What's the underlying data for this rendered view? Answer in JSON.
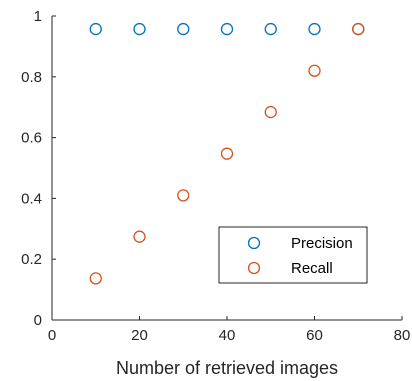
{
  "chart_data": {
    "type": "scatter",
    "xlabel": "Number of retrieved images",
    "ylabel": "",
    "xlim": [
      0,
      80
    ],
    "ylim": [
      0,
      1
    ],
    "xticks": [
      "0",
      "20",
      "40",
      "60",
      "80"
    ],
    "yticks": [
      "0",
      "0.2",
      "0.4",
      "0.6",
      "0.8",
      "1"
    ],
    "grid": false,
    "legend_position": "bottom-right",
    "marker": "circle-open",
    "series": [
      {
        "name": "Precision",
        "color": "#0072BD",
        "x": [
          10,
          20,
          30,
          40,
          50,
          60,
          70
        ],
        "y": [
          0.957,
          0.957,
          0.957,
          0.957,
          0.957,
          0.957,
          0.957
        ]
      },
      {
        "name": "Recall",
        "color": "#D95319",
        "x": [
          10,
          20,
          30,
          40,
          50,
          60,
          70
        ],
        "y": [
          0.137,
          0.274,
          0.41,
          0.547,
          0.684,
          0.82,
          0.957
        ]
      }
    ]
  }
}
